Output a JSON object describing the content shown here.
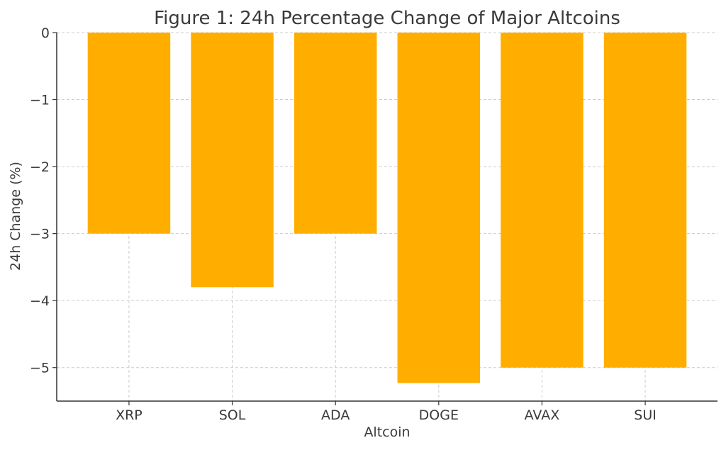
{
  "chart_data": {
    "type": "bar",
    "title": "Figure 1: 24h Percentage Change of Major Altcoins",
    "xlabel": "Altcoin",
    "ylabel": "24h Change (%)",
    "categories": [
      "XRP",
      "SOL",
      "ADA",
      "DOGE",
      "AVAX",
      "SUI"
    ],
    "values": [
      -3.0,
      -3.8,
      -3.0,
      -5.23,
      -5.0,
      -5.0
    ],
    "ylim": [
      -5.5,
      0
    ],
    "yticks": [
      0,
      -1,
      -2,
      -3,
      -4,
      -5
    ],
    "ytick_labels": [
      "0",
      "−1",
      "−2",
      "−3",
      "−4",
      "−5"
    ],
    "grid": true,
    "colors": {
      "bar": "#FFAE00"
    }
  }
}
